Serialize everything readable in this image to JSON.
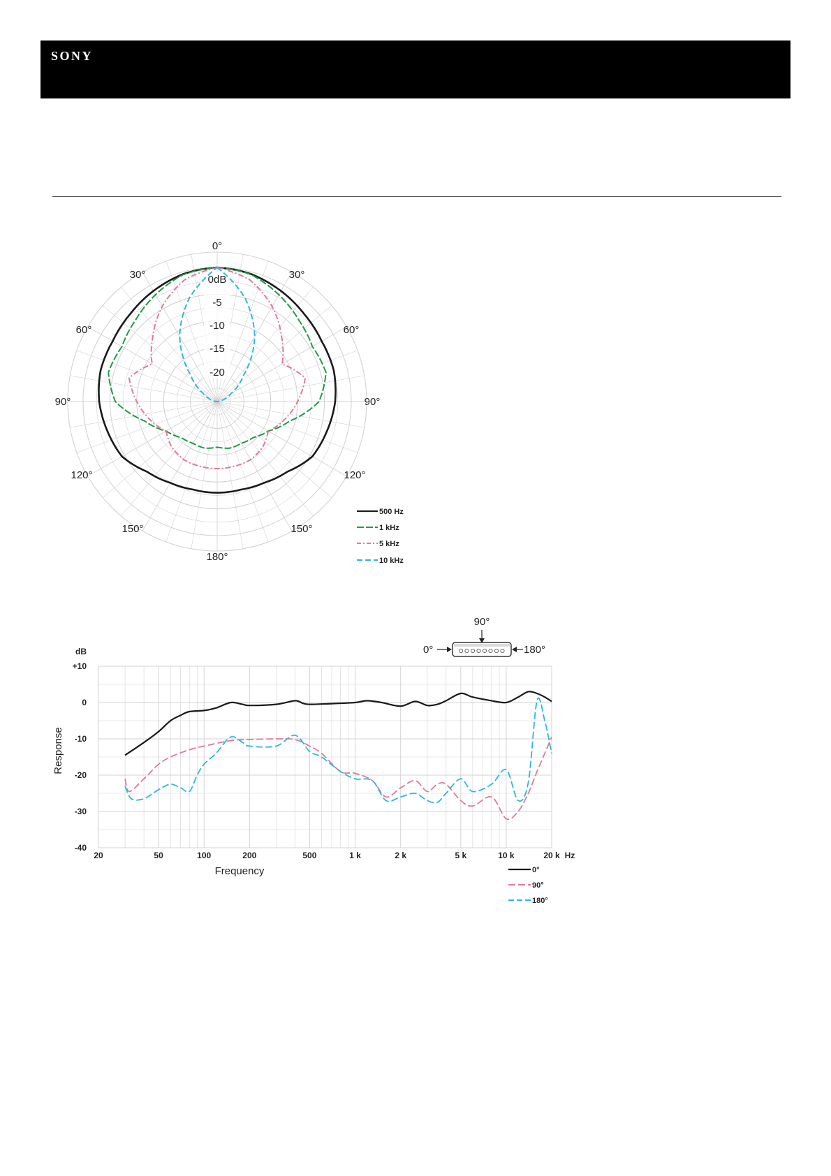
{
  "header": {
    "brand": "SONY"
  },
  "colors": {
    "black": "#1a1a1a",
    "green": "#1f9b48",
    "pink": "#e07a96",
    "cyan": "#2bb7e0",
    "grid": "#d3d3d3"
  },
  "chart_data": [
    {
      "type": "polar",
      "angle_labels": {
        "top": "0°",
        "top_left": "30°",
        "top_right": "30°",
        "left60": "60°",
        "right60": "60°",
        "left90": "90°",
        "right90": "90°",
        "left120": "120°",
        "right120": "120°",
        "left150": "150°",
        "right150": "150°",
        "bottom": "180°"
      },
      "radial_labels": [
        "0dB",
        "-5",
        "-10",
        "-15",
        "-20"
      ],
      "radial_range_db": [
        -25,
        0
      ],
      "grid": true,
      "legend_position": "bottom-right",
      "legend": [
        "500 Hz",
        "1 kHz",
        "5 kHz",
        "10 kHz"
      ],
      "angles_deg": [
        0,
        15,
        30,
        45,
        60,
        75,
        90,
        105,
        120,
        135,
        150,
        165,
        180
      ],
      "series": [
        {
          "name": "500 Hz",
          "color": "#1a1a1a",
          "dash": "",
          "db": [
            0,
            -0.4,
            -1.2,
            -2.0,
            -2.5,
            -2.5,
            -3.0,
            -3.8,
            -4.5,
            -6.5,
            -7.5,
            -8.0,
            -8.0
          ]
        },
        {
          "name": "1 kHz",
          "color": "#1f9b48",
          "dash": "10 3",
          "db": [
            0,
            -0.5,
            -2.0,
            -3.5,
            -4.5,
            -4.0,
            -6.0,
            -11.0,
            -14.0,
            -15.5,
            -16.0,
            -16.0,
            -16.5
          ]
        },
        {
          "name": "5 kHz",
          "color": "#e07a96",
          "dash": "8 3 2 3",
          "db": [
            0,
            -1.5,
            -4.5,
            -8.0,
            -11.0,
            -8.0,
            -10.0,
            -12.0,
            -14.0,
            -13.0,
            -12.5,
            -12.5,
            -12.5
          ]
        },
        {
          "name": "10 kHz",
          "color": "#2bb7e0",
          "dash": "8 4",
          "db": [
            0,
            -5.0,
            -11.0,
            -18.0,
            -22.0,
            -24.0,
            -25.0,
            -25.0,
            -25.0,
            -25.0,
            -25.0,
            -25.0,
            -25.0
          ]
        }
      ]
    },
    {
      "type": "line",
      "xscale": "log",
      "xlim": [
        20,
        20000
      ],
      "ylim": [
        -40,
        10
      ],
      "xlabel": "Frequency",
      "ylabel": "Response",
      "yunit": "dB",
      "xunit": "Hz",
      "xticks": [
        20,
        50,
        100,
        200,
        500,
        1000,
        2000,
        5000,
        10000,
        20000
      ],
      "xtick_labels": [
        "20",
        "50",
        "100",
        "200",
        "500",
        "1 k",
        "2 k",
        "5 k",
        "10 k",
        "20 k"
      ],
      "yticks": [
        10,
        0,
        -10,
        -20,
        -30,
        -40
      ],
      "ytick_labels": [
        "+10",
        "0",
        "-10",
        "-20",
        "-30",
        "-40"
      ],
      "grid": true,
      "legend_position": "bottom-right",
      "diagram": {
        "top": "90°",
        "left": "0°",
        "right": "180°"
      },
      "series": [
        {
          "name": "0°",
          "color": "#1a1a1a",
          "dash": "",
          "points": [
            [
              30,
              -14.5
            ],
            [
              40,
              -11
            ],
            [
              50,
              -8
            ],
            [
              60,
              -5
            ],
            [
              70,
              -3.5
            ],
            [
              80,
              -2.5
            ],
            [
              100,
              -2.2
            ],
            [
              120,
              -1.5
            ],
            [
              150,
              0
            ],
            [
              180,
              -0.5
            ],
            [
              200,
              -0.8
            ],
            [
              300,
              -0.5
            ],
            [
              400,
              0.5
            ],
            [
              450,
              -0.2
            ],
            [
              500,
              -0.5
            ],
            [
              700,
              -0.3
            ],
            [
              1000,
              0
            ],
            [
              1200,
              0.5
            ],
            [
              1500,
              0
            ],
            [
              2000,
              -1
            ],
            [
              2500,
              0.3
            ],
            [
              3000,
              -0.8
            ],
            [
              3500,
              -0.5
            ],
            [
              4000,
              0.5
            ],
            [
              5000,
              2.5
            ],
            [
              6000,
              1.5
            ],
            [
              8000,
              0.5
            ],
            [
              10000,
              0
            ],
            [
              12000,
              1.5
            ],
            [
              14000,
              3
            ],
            [
              16000,
              2.5
            ],
            [
              18000,
              1.5
            ],
            [
              20000,
              0.3
            ]
          ]
        },
        {
          "name": "90°",
          "color": "#e07a96",
          "dash": "10 4",
          "points": [
            [
              30,
              -21
            ],
            [
              32,
              -24.5
            ],
            [
              40,
              -21
            ],
            [
              50,
              -17
            ],
            [
              60,
              -15
            ],
            [
              80,
              -13
            ],
            [
              100,
              -12
            ],
            [
              150,
              -10.5
            ],
            [
              200,
              -10.2
            ],
            [
              300,
              -10
            ],
            [
              400,
              -10.2
            ],
            [
              500,
              -12
            ],
            [
              600,
              -14
            ],
            [
              800,
              -19
            ],
            [
              1000,
              -19.5
            ],
            [
              1300,
              -21.5
            ],
            [
              1600,
              -26
            ],
            [
              2000,
              -23.5
            ],
            [
              2500,
              -21.5
            ],
            [
              3000,
              -24.5
            ],
            [
              3500,
              -22.5
            ],
            [
              4000,
              -22.5
            ],
            [
              5000,
              -27
            ],
            [
              6000,
              -28.5
            ],
            [
              8000,
              -26
            ],
            [
              10000,
              -32
            ],
            [
              12000,
              -30
            ],
            [
              14000,
              -25
            ],
            [
              16000,
              -19
            ],
            [
              18000,
              -14
            ],
            [
              20000,
              -9.5
            ]
          ]
        },
        {
          "name": "180°",
          "color": "#2bb7e0",
          "dash": "10 4",
          "points": [
            [
              30,
              -23
            ],
            [
              33,
              -26.5
            ],
            [
              40,
              -26.5
            ],
            [
              50,
              -24
            ],
            [
              60,
              -22.5
            ],
            [
              70,
              -23.5
            ],
            [
              80,
              -24.5
            ],
            [
              90,
              -20
            ],
            [
              100,
              -17
            ],
            [
              120,
              -14
            ],
            [
              150,
              -9.5
            ],
            [
              180,
              -11
            ],
            [
              200,
              -12
            ],
            [
              300,
              -12
            ],
            [
              400,
              -9
            ],
            [
              500,
              -13.5
            ],
            [
              600,
              -15
            ],
            [
              800,
              -19
            ],
            [
              1000,
              -21
            ],
            [
              1300,
              -21.5
            ],
            [
              1600,
              -27
            ],
            [
              2000,
              -26
            ],
            [
              2500,
              -25
            ],
            [
              3000,
              -27
            ],
            [
              3500,
              -27.5
            ],
            [
              4000,
              -25
            ],
            [
              5000,
              -21
            ],
            [
              6000,
              -24.5
            ],
            [
              8000,
              -22.5
            ],
            [
              10000,
              -18.5
            ],
            [
              12000,
              -27
            ],
            [
              14000,
              -22
            ],
            [
              16000,
              0.5
            ],
            [
              18000,
              -5
            ],
            [
              20000,
              -14
            ]
          ]
        }
      ]
    }
  ]
}
